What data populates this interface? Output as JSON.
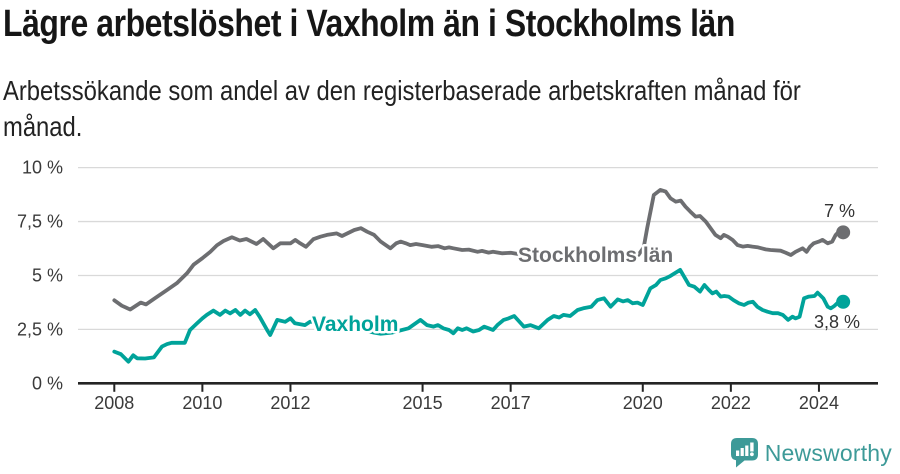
{
  "header": {
    "title": "Lägre arbetslöshet i Vaxholm än i Stockholms län",
    "subtitle_line1": "Arbetssökande som andel av den registerbaserade arbetskraften månad för",
    "subtitle_line2": "månad."
  },
  "footer": {
    "brand": "Newsworthy",
    "logo_icon": "newsworthy-speech-bubble-bar-chart-icon"
  },
  "colors": {
    "stockholm_gray": "#6d6e71",
    "vaxholm_teal": "#00a39a",
    "axis": "#242424",
    "grid": "#d9d9d9",
    "tick_text": "#3a3a3a",
    "brand_teal": "#3d9a98",
    "background": "#ffffff"
  },
  "chart_data": {
    "type": "line",
    "title": "Lägre arbetslöshet i Vaxholm än i Stockholms län",
    "subtitle": "Arbetssökande som andel av den registerbaserade arbetskraften månad för månad.",
    "unit": "%",
    "grid": "horizontal-only",
    "legend": "inline-series-labels",
    "x_axis": {
      "ticks": [
        2008,
        2010,
        2012,
        2015,
        2017,
        2020,
        2022,
        2024
      ],
      "labels": [
        "2008",
        "2010",
        "2012",
        "2015",
        "2017",
        "2020",
        "2022",
        "2024"
      ],
      "range_years": [
        2007.2,
        2025.3
      ]
    },
    "y_axis": {
      "ticks": [
        0,
        2.5,
        5,
        7.5,
        10
      ],
      "labels": [
        "0 %",
        "2,5 %",
        "5 %",
        "7,5 %",
        "10 %"
      ],
      "range": [
        0,
        10
      ]
    },
    "series": [
      {
        "name": "Stockholms län",
        "color": "#6d6e71",
        "end_label": "7 %",
        "end_value": 7.0,
        "points": [
          [
            2008.0,
            3.85
          ],
          [
            2008.17,
            3.6
          ],
          [
            2008.36,
            3.42
          ],
          [
            2008.6,
            3.74
          ],
          [
            2008.72,
            3.66
          ],
          [
            2008.92,
            3.94
          ],
          [
            2009.2,
            4.33
          ],
          [
            2009.42,
            4.64
          ],
          [
            2009.65,
            5.1
          ],
          [
            2009.8,
            5.5
          ],
          [
            2010.0,
            5.8
          ],
          [
            2010.18,
            6.1
          ],
          [
            2010.33,
            6.4
          ],
          [
            2010.48,
            6.6
          ],
          [
            2010.67,
            6.77
          ],
          [
            2010.85,
            6.62
          ],
          [
            2011.0,
            6.69
          ],
          [
            2011.23,
            6.46
          ],
          [
            2011.38,
            6.69
          ],
          [
            2011.61,
            6.26
          ],
          [
            2011.77,
            6.49
          ],
          [
            2012.0,
            6.49
          ],
          [
            2012.11,
            6.65
          ],
          [
            2012.22,
            6.49
          ],
          [
            2012.35,
            6.33
          ],
          [
            2012.52,
            6.68
          ],
          [
            2012.68,
            6.8
          ],
          [
            2012.83,
            6.88
          ],
          [
            2013.05,
            6.95
          ],
          [
            2013.17,
            6.83
          ],
          [
            2013.45,
            7.11
          ],
          [
            2013.6,
            7.19
          ],
          [
            2013.74,
            7.03
          ],
          [
            2013.9,
            6.88
          ],
          [
            2014.05,
            6.57
          ],
          [
            2014.27,
            6.26
          ],
          [
            2014.4,
            6.49
          ],
          [
            2014.5,
            6.57
          ],
          [
            2014.62,
            6.49
          ],
          [
            2014.72,
            6.41
          ],
          [
            2014.85,
            6.46
          ],
          [
            2015.0,
            6.41
          ],
          [
            2015.2,
            6.33
          ],
          [
            2015.35,
            6.36
          ],
          [
            2015.5,
            6.26
          ],
          [
            2015.6,
            6.3
          ],
          [
            2015.7,
            6.26
          ],
          [
            2015.9,
            6.18
          ],
          [
            2016.05,
            6.2
          ],
          [
            2016.25,
            6.1
          ],
          [
            2016.35,
            6.14
          ],
          [
            2016.5,
            6.06
          ],
          [
            2016.6,
            6.1
          ],
          [
            2016.8,
            6.03
          ],
          [
            2017.0,
            6.05
          ],
          [
            2017.3,
            5.95
          ],
          [
            2017.6,
            5.9
          ],
          [
            2018.0,
            5.85
          ],
          [
            2018.5,
            5.8
          ],
          [
            2019.0,
            5.8
          ],
          [
            2019.4,
            5.85
          ],
          [
            2019.7,
            5.9
          ],
          [
            2019.9,
            5.95
          ],
          [
            2020.02,
            6.3
          ],
          [
            2020.1,
            7.2
          ],
          [
            2020.25,
            8.73
          ],
          [
            2020.4,
            8.97
          ],
          [
            2020.52,
            8.89
          ],
          [
            2020.63,
            8.58
          ],
          [
            2020.75,
            8.42
          ],
          [
            2020.86,
            8.47
          ],
          [
            2020.97,
            8.19
          ],
          [
            2021.08,
            7.96
          ],
          [
            2021.2,
            7.73
          ],
          [
            2021.3,
            7.76
          ],
          [
            2021.43,
            7.5
          ],
          [
            2021.54,
            7.19
          ],
          [
            2021.65,
            6.88
          ],
          [
            2021.77,
            6.73
          ],
          [
            2021.84,
            6.88
          ],
          [
            2021.93,
            6.8
          ],
          [
            2022.04,
            6.65
          ],
          [
            2022.15,
            6.41
          ],
          [
            2022.27,
            6.34
          ],
          [
            2022.38,
            6.37
          ],
          [
            2022.49,
            6.34
          ],
          [
            2022.6,
            6.31
          ],
          [
            2022.79,
            6.21
          ],
          [
            2022.9,
            6.18
          ],
          [
            2023.13,
            6.15
          ],
          [
            2023.24,
            6.06
          ],
          [
            2023.36,
            5.95
          ],
          [
            2023.47,
            6.1
          ],
          [
            2023.63,
            6.26
          ],
          [
            2023.72,
            6.1
          ],
          [
            2023.8,
            6.34
          ],
          [
            2023.88,
            6.49
          ],
          [
            2024.0,
            6.57
          ],
          [
            2024.08,
            6.65
          ],
          [
            2024.2,
            6.49
          ],
          [
            2024.3,
            6.57
          ],
          [
            2024.38,
            6.88
          ],
          [
            2024.45,
            7.03
          ],
          [
            2024.55,
            7.0
          ]
        ]
      },
      {
        "name": "Vaxholm",
        "color": "#00a39a",
        "end_label": "3,8 %",
        "end_value": 3.8,
        "points": [
          [
            2008.0,
            1.47
          ],
          [
            2008.15,
            1.35
          ],
          [
            2008.32,
            1.0
          ],
          [
            2008.43,
            1.3
          ],
          [
            2008.52,
            1.16
          ],
          [
            2008.7,
            1.15
          ],
          [
            2008.9,
            1.2
          ],
          [
            2009.08,
            1.7
          ],
          [
            2009.2,
            1.82
          ],
          [
            2009.3,
            1.88
          ],
          [
            2009.6,
            1.88
          ],
          [
            2009.72,
            2.47
          ],
          [
            2009.88,
            2.78
          ],
          [
            2010.0,
            3.01
          ],
          [
            2010.1,
            3.17
          ],
          [
            2010.25,
            3.37
          ],
          [
            2010.4,
            3.17
          ],
          [
            2010.52,
            3.37
          ],
          [
            2010.63,
            3.24
          ],
          [
            2010.75,
            3.4
          ],
          [
            2010.86,
            3.17
          ],
          [
            2010.97,
            3.37
          ],
          [
            2011.08,
            3.2
          ],
          [
            2011.2,
            3.4
          ],
          [
            2011.3,
            3.09
          ],
          [
            2011.47,
            2.47
          ],
          [
            2011.54,
            2.24
          ],
          [
            2011.7,
            2.94
          ],
          [
            2011.88,
            2.85
          ],
          [
            2012.0,
            3.01
          ],
          [
            2012.1,
            2.78
          ],
          [
            2012.33,
            2.7
          ],
          [
            2012.45,
            2.86
          ],
          [
            2012.7,
            2.8
          ],
          [
            2013.0,
            2.75
          ],
          [
            2013.3,
            2.65
          ],
          [
            2013.6,
            2.5
          ],
          [
            2013.9,
            2.35
          ],
          [
            2014.05,
            2.3
          ],
          [
            2014.3,
            2.35
          ],
          [
            2014.68,
            2.55
          ],
          [
            2014.95,
            2.94
          ],
          [
            2015.1,
            2.7
          ],
          [
            2015.25,
            2.63
          ],
          [
            2015.35,
            2.7
          ],
          [
            2015.47,
            2.55
          ],
          [
            2015.6,
            2.47
          ],
          [
            2015.7,
            2.32
          ],
          [
            2015.8,
            2.55
          ],
          [
            2015.9,
            2.47
          ],
          [
            2016.0,
            2.55
          ],
          [
            2016.15,
            2.4
          ],
          [
            2016.28,
            2.47
          ],
          [
            2016.4,
            2.63
          ],
          [
            2016.5,
            2.55
          ],
          [
            2016.6,
            2.47
          ],
          [
            2016.7,
            2.7
          ],
          [
            2016.84,
            2.94
          ],
          [
            2016.95,
            3.01
          ],
          [
            2017.08,
            3.12
          ],
          [
            2017.3,
            2.63
          ],
          [
            2017.45,
            2.7
          ],
          [
            2017.64,
            2.55
          ],
          [
            2017.84,
            2.94
          ],
          [
            2017.98,
            3.12
          ],
          [
            2018.1,
            3.05
          ],
          [
            2018.2,
            3.17
          ],
          [
            2018.35,
            3.12
          ],
          [
            2018.52,
            3.4
          ],
          [
            2018.65,
            3.48
          ],
          [
            2018.83,
            3.55
          ],
          [
            2018.97,
            3.86
          ],
          [
            2019.12,
            3.94
          ],
          [
            2019.27,
            3.55
          ],
          [
            2019.43,
            3.89
          ],
          [
            2019.55,
            3.8
          ],
          [
            2019.66,
            3.86
          ],
          [
            2019.77,
            3.71
          ],
          [
            2019.88,
            3.74
          ],
          [
            2020.0,
            3.63
          ],
          [
            2020.17,
            4.4
          ],
          [
            2020.3,
            4.56
          ],
          [
            2020.4,
            4.79
          ],
          [
            2020.52,
            4.87
          ],
          [
            2020.63,
            4.98
          ],
          [
            2020.85,
            5.26
          ],
          [
            2021.05,
            4.56
          ],
          [
            2021.17,
            4.48
          ],
          [
            2021.3,
            4.25
          ],
          [
            2021.4,
            4.56
          ],
          [
            2021.5,
            4.33
          ],
          [
            2021.58,
            4.17
          ],
          [
            2021.67,
            4.25
          ],
          [
            2021.77,
            4.02
          ],
          [
            2021.85,
            4.05
          ],
          [
            2021.95,
            4.02
          ],
          [
            2022.06,
            3.86
          ],
          [
            2022.18,
            3.71
          ],
          [
            2022.3,
            3.63
          ],
          [
            2022.4,
            3.74
          ],
          [
            2022.5,
            3.78
          ],
          [
            2022.6,
            3.55
          ],
          [
            2022.72,
            3.4
          ],
          [
            2022.83,
            3.32
          ],
          [
            2022.95,
            3.25
          ],
          [
            2023.07,
            3.25
          ],
          [
            2023.18,
            3.17
          ],
          [
            2023.3,
            2.94
          ],
          [
            2023.4,
            3.09
          ],
          [
            2023.47,
            3.01
          ],
          [
            2023.56,
            3.09
          ],
          [
            2023.66,
            3.94
          ],
          [
            2023.77,
            4.02
          ],
          [
            2023.9,
            4.05
          ],
          [
            2023.97,
            4.2
          ],
          [
            2024.1,
            3.94
          ],
          [
            2024.2,
            3.55
          ],
          [
            2024.27,
            3.48
          ],
          [
            2024.35,
            3.59
          ],
          [
            2024.45,
            3.78
          ],
          [
            2024.55,
            3.78
          ]
        ]
      }
    ]
  }
}
